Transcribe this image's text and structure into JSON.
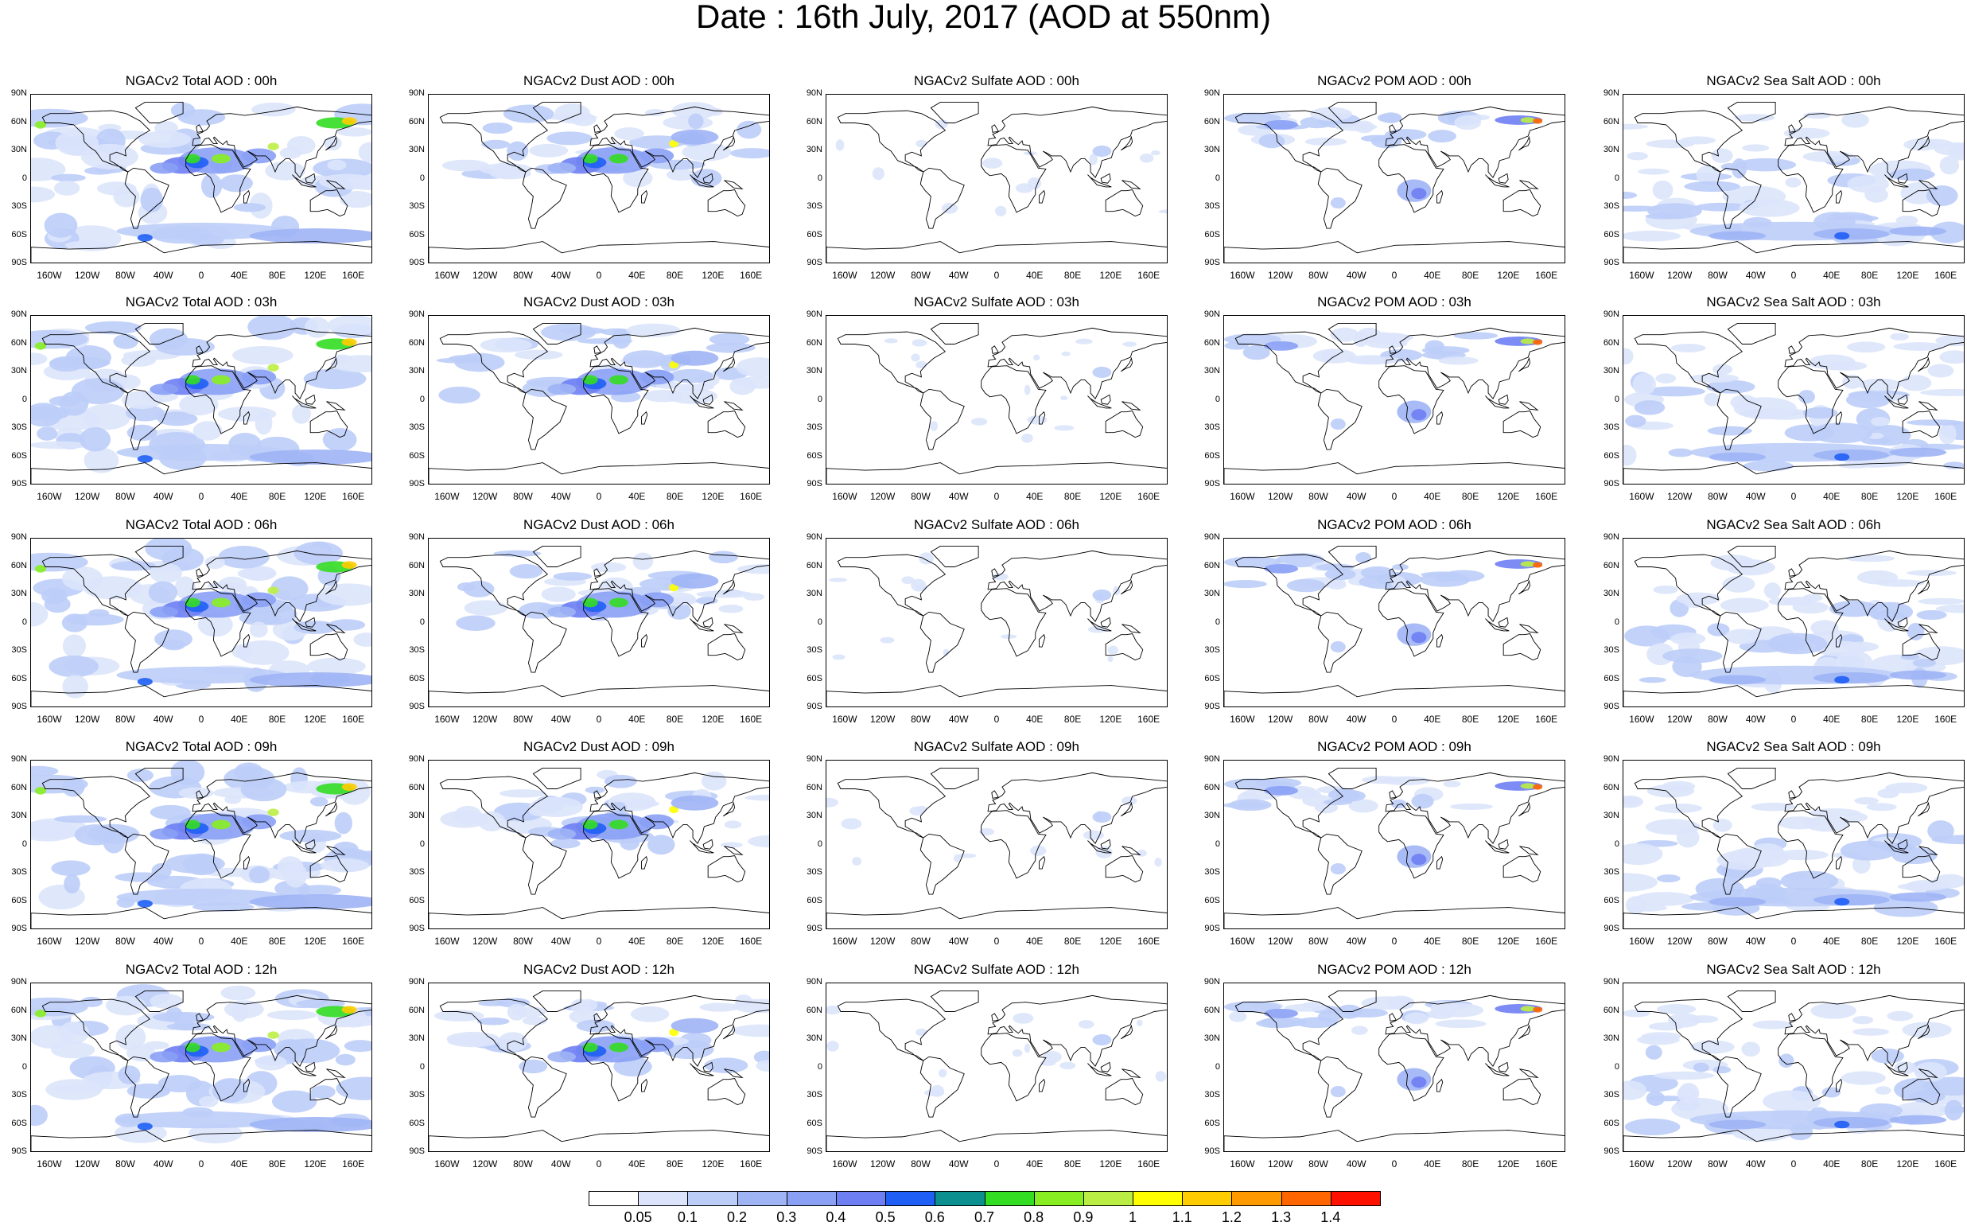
{
  "title": "Date : 16th July, 2017 (AOD at 550nm)",
  "panels": [
    [
      "NGACv2 Total AOD : 00h",
      "NGACv2 Dust AOD : 00h",
      "NGACv2 Sulfate AOD : 00h",
      "NGACv2 POM AOD : 00h",
      "NGACv2 Sea Salt AOD : 00h"
    ],
    [
      "NGACv2 Total AOD : 03h",
      "NGACv2 Dust AOD : 03h",
      "NGACv2 Sulfate AOD : 03h",
      "NGACv2 POM AOD : 03h",
      "NGACv2 Sea Salt AOD : 03h"
    ],
    [
      "NGACv2 Total AOD : 06h",
      "NGACv2 Dust AOD : 06h",
      "NGACv2 Sulfate AOD : 06h",
      "NGACv2 POM AOD : 06h",
      "NGACv2 Sea Salt AOD : 06h"
    ],
    [
      "NGACv2 Total AOD : 09h",
      "NGACv2 Dust AOD : 09h",
      "NGACv2 Sulfate AOD : 09h",
      "NGACv2 POM AOD : 09h",
      "NGACv2 Sea Salt  AOD : 09h"
    ],
    [
      "NGACv2 Total AOD : 12h",
      "NGACv2 Dust AOD : 12h",
      "NGACv2 Sulfate AOD : 12h",
      "NGACv2 POM  AOD : 12h",
      "NGACv2 Sea Salt AOD : 12h"
    ]
  ],
  "lat_ticks": [
    "90N",
    "60N",
    "30N",
    "0",
    "30S",
    "60S",
    "90S"
  ],
  "lon_ticks": [
    "160W",
    "120W",
    "80W",
    "40W",
    "0",
    "40E",
    "80E",
    "120E",
    "160E"
  ],
  "colorbar": {
    "colors": [
      "#ffffff",
      "#dbe4fb",
      "#bccdf8",
      "#9fb4f5",
      "#8aa0f5",
      "#6e7ff3",
      "#1f5ff5",
      "#0c8f8f",
      "#33dd22",
      "#88ee22",
      "#bbee44",
      "#ffff00",
      "#ffcc00",
      "#ff9900",
      "#ff6600",
      "#ff1100"
    ],
    "labels": [
      "0.05",
      "0.1",
      "0.2",
      "0.3",
      "0.4",
      "0.5",
      "0.6",
      "0.7",
      "0.8",
      "0.9",
      "1",
      "1.1",
      "1.2",
      "1.3",
      "1.4"
    ]
  }
}
